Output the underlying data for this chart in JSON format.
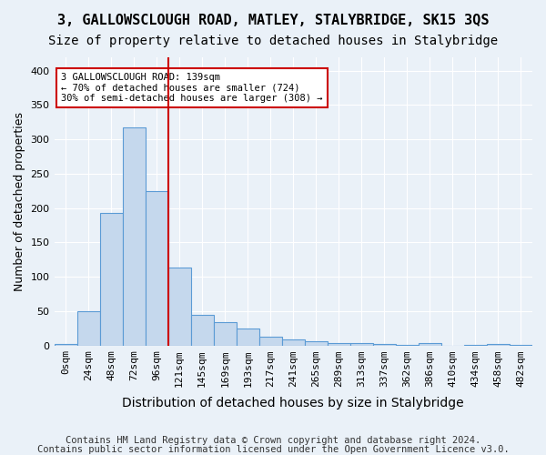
{
  "title": "3, GALLOWSCLOUGH ROAD, MATLEY, STALYBRIDGE, SK15 3QS",
  "subtitle": "Size of property relative to detached houses in Stalybridge",
  "xlabel": "Distribution of detached houses by size in Stalybridge",
  "ylabel": "Number of detached properties",
  "footer1": "Contains HM Land Registry data © Crown copyright and database right 2024.",
  "footer2": "Contains public sector information licensed under the Open Government Licence v3.0.",
  "bar_labels": [
    "0sqm",
    "24sqm",
    "48sqm",
    "72sqm",
    "96sqm",
    "121sqm",
    "145sqm",
    "169sqm",
    "193sqm",
    "217sqm",
    "241sqm",
    "265sqm",
    "289sqm",
    "313sqm",
    "337sqm",
    "362sqm",
    "386sqm",
    "410sqm",
    "434sqm",
    "458sqm",
    "482sqm"
  ],
  "bar_values": [
    2,
    50,
    193,
    317,
    225,
    113,
    44,
    34,
    24,
    13,
    9,
    6,
    4,
    3,
    2,
    1,
    3,
    0,
    1,
    2,
    1
  ],
  "bar_color": "#c5d8ed",
  "bar_edge_color": "#5b9bd5",
  "vline_x": 4.5,
  "vline_color": "#cc0000",
  "annotation_text": "3 GALLOWSCLOUGH ROAD: 139sqm\n← 70% of detached houses are smaller (724)\n30% of semi-detached houses are larger (308) →",
  "annotation_box_color": "#ffffff",
  "annotation_box_edge": "#cc0000",
  "ylim": [
    0,
    420
  ],
  "yticks": [
    0,
    50,
    100,
    150,
    200,
    250,
    300,
    350,
    400
  ],
  "bg_color": "#eaf1f8",
  "plot_bg": "#eaf1f8",
  "grid_color": "#ffffff",
  "title_fontsize": 11,
  "subtitle_fontsize": 10,
  "xlabel_fontsize": 10,
  "ylabel_fontsize": 9,
  "tick_fontsize": 8,
  "footer_fontsize": 7.5
}
